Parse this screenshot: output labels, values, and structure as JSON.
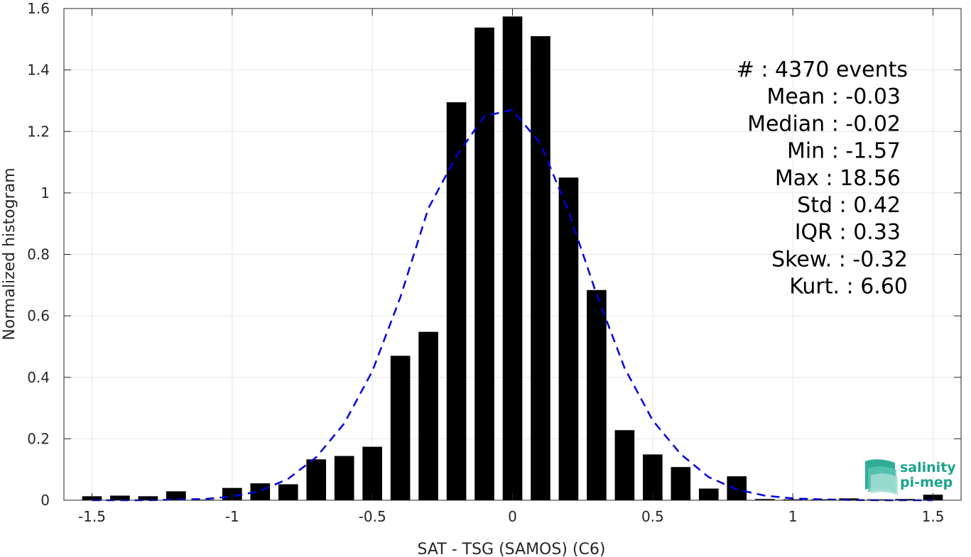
{
  "chart_data": {
    "type": "bar",
    "xlabel": "SAT - TSG (SAMOS) (C6)",
    "ylabel": "Normalized histogram",
    "xlim": [
      -1.6,
      1.6
    ],
    "ylim": [
      0,
      1.6
    ],
    "x_ticks": [
      "-1.5",
      "-1",
      "-0.5",
      "0",
      "0.5",
      "1",
      "1.5"
    ],
    "x_tick_values": [
      -1.5,
      -1,
      -0.5,
      0,
      0.5,
      1,
      1.5
    ],
    "y_ticks": [
      "0",
      "0.2",
      "0.4",
      "0.6",
      "0.8",
      "1",
      "1.2",
      "1.4",
      "1.6"
    ],
    "y_tick_values": [
      0,
      0.2,
      0.4,
      0.6,
      0.8,
      1,
      1.2,
      1.4,
      1.6
    ],
    "grid": true,
    "bar_width": 0.07,
    "bar_color": "#000000",
    "bars": {
      "x": [
        -1.5,
        -1.4,
        -1.3,
        -1.2,
        -1.1,
        -1.0,
        -0.9,
        -0.8,
        -0.7,
        -0.6,
        -0.5,
        -0.4,
        -0.3,
        -0.2,
        -0.1,
        0.0,
        0.1,
        0.2,
        0.3,
        0.4,
        0.5,
        0.6,
        0.7,
        0.8,
        0.9,
        1.0,
        1.1,
        1.2,
        1.3,
        1.4,
        1.5
      ],
      "values": [
        0.013,
        0.015,
        0.013,
        0.029,
        0.002,
        0.04,
        0.055,
        0.052,
        0.133,
        0.144,
        0.174,
        0.47,
        0.548,
        1.295,
        1.538,
        1.574,
        1.51,
        1.05,
        0.684,
        0.228,
        0.149,
        0.108,
        0.038,
        0.078,
        0.004,
        0.003,
        0.003,
        0.006,
        0.003,
        0.004,
        0.018
      ]
    },
    "fit_curve": {
      "style": "dashed",
      "color": "#0000dd",
      "x": [
        -1.5,
        -1.4,
        -1.3,
        -1.2,
        -1.1,
        -1.0,
        -0.9,
        -0.8,
        -0.7,
        -0.6,
        -0.5,
        -0.4,
        -0.3,
        -0.2,
        -0.1,
        0.0,
        0.1,
        0.2,
        0.3,
        0.4,
        0.5,
        0.6,
        0.7,
        0.8,
        0.9,
        1.0,
        1.1,
        1.2,
        1.3,
        1.4,
        1.5
      ],
      "values": [
        0.0,
        0.0,
        0.0,
        0.002,
        0.004,
        0.012,
        0.03,
        0.07,
        0.14,
        0.25,
        0.42,
        0.66,
        0.95,
        1.12,
        1.25,
        1.27,
        1.16,
        0.94,
        0.67,
        0.43,
        0.26,
        0.15,
        0.075,
        0.035,
        0.015,
        0.006,
        0.003,
        0.001,
        0.0,
        0.0,
        0.0
      ]
    },
    "annotations": [
      "#  : 4370 events",
      "Mean : -0.03",
      "Median : -0.02",
      "Min : -1.57",
      "Max : 18.56",
      "Std : 0.42",
      "IQR : 0.33",
      "Skew. : -0.32",
      "Kurt. : 6.60"
    ]
  },
  "logo": {
    "line1": "salinity",
    "line2": "pi-mep",
    "color": "#1aa38c"
  }
}
